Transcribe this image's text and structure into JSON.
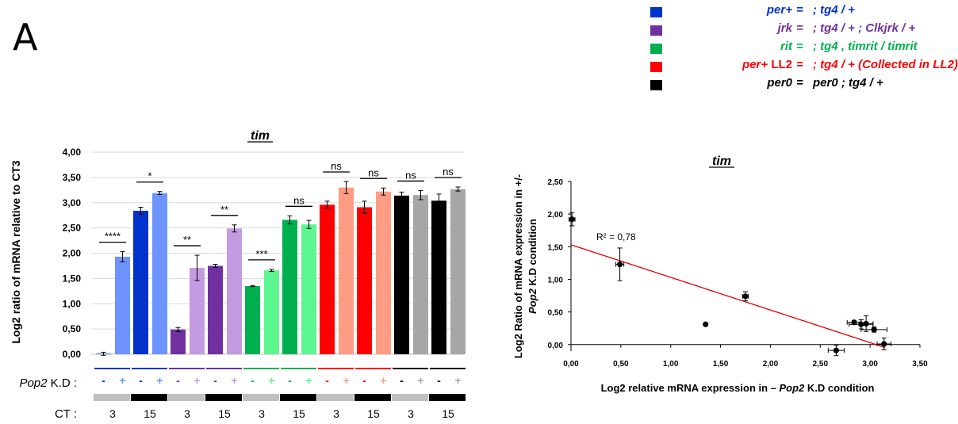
{
  "panel_label": "A",
  "legend": [
    {
      "key": "per+",
      "extra": "",
      "eq": "=",
      "value": "; tg4 / +",
      "color": "#0033cc"
    },
    {
      "key": "jrk",
      "extra": "",
      "eq": "=",
      "value": "; tg4 / + ; Clkjrk / +",
      "color": "#7030a0"
    },
    {
      "key": "rit",
      "extra": "",
      "eq": "=",
      "value": "; tg4 , timrit / timrit",
      "color": "#00b050"
    },
    {
      "key": "per+",
      "extra": "LL2",
      "eq": "=",
      "value": "; tg4 / + (Collected in LL2)",
      "color": "#ff0000"
    },
    {
      "key": "per0",
      "extra": "",
      "eq": "=",
      "value": "per0 ; tg4 / +",
      "color": "#000000"
    }
  ],
  "chart_data": [
    {
      "type": "bar",
      "title": "tim",
      "ylabel": "Log2 ratio of mRNA relative to CT3",
      "ylim": [
        0,
        4
      ],
      "yticks": [
        "0,00",
        "0,50",
        "1,00",
        "1,50",
        "2,00",
        "2,50",
        "3,00",
        "3,50",
        "4,00"
      ],
      "grid": true,
      "row_labels": {
        "kd": "Pop2 K.D :",
        "ct": "CT :"
      },
      "groups": [
        {
          "genotype": "per+",
          "ct": "3",
          "ct_bar": "#c0c0c0",
          "bars": [
            {
              "kd": "-",
              "value": 0.01,
              "err": 0.03,
              "color": "#0033cc"
            },
            {
              "kd": "+",
              "value": 1.93,
              "err": 0.1,
              "color": "#6d93ff"
            }
          ]
        },
        {
          "genotype": "per+",
          "ct": "15",
          "ct_bar": "#000000",
          "bars": [
            {
              "kd": "-",
              "value": 2.84,
              "err": 0.07,
              "color": "#0033cc"
            },
            {
              "kd": "+",
              "value": 3.19,
              "err": 0.03,
              "color": "#6d93ff"
            }
          ]
        },
        {
          "genotype": "jrk",
          "ct": "3",
          "ct_bar": "#c0c0c0",
          "bars": [
            {
              "kd": "-",
              "value": 0.49,
              "err": 0.04,
              "color": "#7030a0"
            },
            {
              "kd": "+",
              "value": 1.71,
              "err": 0.25,
              "color": "#c39be0"
            }
          ]
        },
        {
          "genotype": "jrk",
          "ct": "15",
          "ct_bar": "#000000",
          "bars": [
            {
              "kd": "-",
              "value": 1.75,
              "err": 0.03,
              "color": "#7030a0"
            },
            {
              "kd": "+",
              "value": 2.49,
              "err": 0.07,
              "color": "#c39be0"
            }
          ]
        },
        {
          "genotype": "rit",
          "ct": "3",
          "ct_bar": "#c0c0c0",
          "bars": [
            {
              "kd": "-",
              "value": 1.35,
              "err": 0.01,
              "color": "#00b050"
            },
            {
              "kd": "+",
              "value": 1.66,
              "err": 0.02,
              "color": "#5cf58f"
            }
          ]
        },
        {
          "genotype": "rit",
          "ct": "15",
          "ct_bar": "#000000",
          "bars": [
            {
              "kd": "-",
              "value": 2.66,
              "err": 0.08,
              "color": "#00b050"
            },
            {
              "kd": "+",
              "value": 2.57,
              "err": 0.08,
              "color": "#5cf58f"
            }
          ]
        },
        {
          "genotype": "per+ LL2",
          "ct": "3",
          "ct_bar": "#c0c0c0",
          "bars": [
            {
              "kd": "-",
              "value": 2.96,
              "err": 0.07,
              "color": "#ff0000"
            },
            {
              "kd": "+",
              "value": 3.3,
              "err": 0.12,
              "color": "#ff9c83"
            }
          ]
        },
        {
          "genotype": "per+ LL2",
          "ct": "15",
          "ct_bar": "#000000",
          "bars": [
            {
              "kd": "-",
              "value": 2.91,
              "err": 0.12,
              "color": "#ff0000"
            },
            {
              "kd": "+",
              "value": 3.22,
              "err": 0.07,
              "color": "#ff9c83"
            }
          ]
        },
        {
          "genotype": "per0",
          "ct": "3",
          "ct_bar": "#c0c0c0",
          "bars": [
            {
              "kd": "-",
              "value": 3.14,
              "err": 0.07,
              "color": "#000000"
            },
            {
              "kd": "+",
              "value": 3.15,
              "err": 0.09,
              "color": "#a6a6a6"
            }
          ]
        },
        {
          "genotype": "per0",
          "ct": "15",
          "ct_bar": "#000000",
          "bars": [
            {
              "kd": "-",
              "value": 3.04,
              "err": 0.13,
              "color": "#000000"
            },
            {
              "kd": "+",
              "value": 3.27,
              "err": 0.04,
              "color": "#a6a6a6"
            }
          ]
        }
      ],
      "significance": [
        "****",
        "*",
        "**",
        "**",
        "***",
        "ns",
        "ns",
        "ns",
        "ns",
        "ns"
      ]
    },
    {
      "type": "scatter",
      "title": "tim",
      "xlabel": "Log2 relative mRNA expression in – Pop2 K.D condition",
      "ylabel_line1": "Log2 Ratio of mRNA expression in +/-",
      "ylabel_line2": "Pop2 K.D  condition",
      "xlim": [
        0,
        3.5
      ],
      "ylim": [
        -0.1,
        2.5
      ],
      "xticks": [
        "0,00",
        "0,50",
        "1,00",
        "1,50",
        "2,00",
        "2,50",
        "3,00",
        "3,50"
      ],
      "yticks": [
        "0,00",
        "0,50",
        "1,00",
        "1,50",
        "2,00",
        "2,50"
      ],
      "points": [
        {
          "x": 0.01,
          "y": 1.92,
          "xerr": 0.03,
          "yerr": 0.1
        },
        {
          "x": 0.49,
          "y": 1.23,
          "xerr": 0.04,
          "yerr": 0.25
        },
        {
          "x": 1.35,
          "y": 0.31,
          "xerr": 0.0,
          "yerr": 0.0
        },
        {
          "x": 1.75,
          "y": 0.74,
          "xerr": 0.03,
          "yerr": 0.07
        },
        {
          "x": 2.66,
          "y": -0.09,
          "xerr": 0.08,
          "yerr": 0.08
        },
        {
          "x": 2.84,
          "y": 0.34,
          "xerr": 0.07,
          "yerr": 0.03
        },
        {
          "x": 2.91,
          "y": 0.31,
          "xerr": 0.12,
          "yerr": 0.07
        },
        {
          "x": 2.96,
          "y": 0.32,
          "xerr": 0.07,
          "yerr": 0.12
        },
        {
          "x": 3.04,
          "y": 0.23,
          "xerr": 0.13,
          "yerr": 0.04
        },
        {
          "x": 3.14,
          "y": 0.01,
          "xerr": 0.07,
          "yerr": 0.09
        }
      ],
      "trendline": {
        "slope": -0.5,
        "intercept": 1.53,
        "color": "#e00000"
      },
      "r2_label": "R² = 0,78"
    }
  ]
}
